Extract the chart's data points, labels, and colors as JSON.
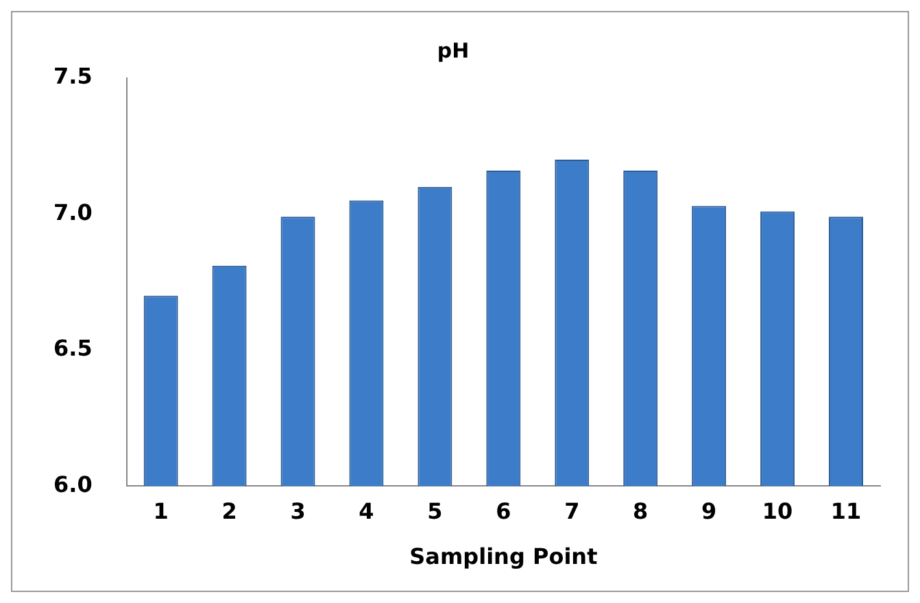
{
  "chart_data": {
    "type": "bar",
    "title": "pH",
    "xlabel": "Sampling Point",
    "categories": [
      "1",
      "2",
      "3",
      "4",
      "5",
      "6",
      "7",
      "8",
      "9",
      "10",
      "11"
    ],
    "values": [
      6.7,
      6.81,
      6.99,
      7.05,
      7.1,
      7.16,
      7.2,
      7.16,
      7.03,
      7.01,
      6.99
    ],
    "color": "#3d7cc9",
    "ylim": [
      6.0,
      7.5
    ],
    "yticks": [
      {
        "value": 6.0,
        "label": "6.0"
      },
      {
        "value": 6.5,
        "label": "6.5"
      },
      {
        "value": 7.0,
        "label": "7.0"
      },
      {
        "value": 7.5,
        "label": "7.5"
      }
    ],
    "grid": false
  }
}
